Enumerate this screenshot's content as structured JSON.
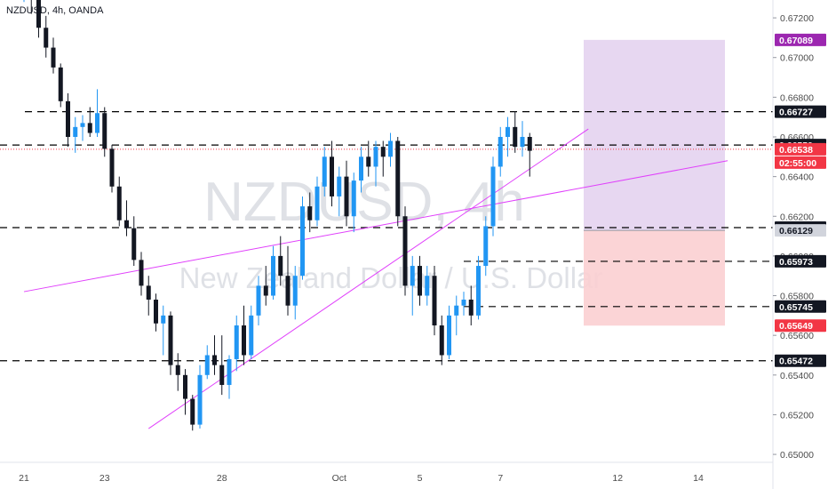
{
  "header": {
    "symbol": "NZDUSD, 4h, OANDA"
  },
  "watermark": {
    "ticker": "NZDUSD, 4h",
    "description": "New Zealand Dollar / U.S. Dollar"
  },
  "colors": {
    "up": "#2196f3",
    "down": "#131722",
    "trend": "#e040fb",
    "dashed": "#000000",
    "profit": "#e4d3f0",
    "loss": "#fbcfd1",
    "axis_text": "#4a4a4a"
  },
  "chart_data": {
    "type": "candlestick",
    "symbol": "NZDUSD",
    "timeframe": "4h",
    "ylim": [
      0.6496,
      0.6729
    ],
    "y_ticks": [
      "0.67200",
      "0.67000",
      "0.66800",
      "0.66600",
      "0.66400",
      "0.66200",
      "0.66000",
      "0.65800",
      "0.65600",
      "0.65400",
      "0.65200",
      "0.65000"
    ],
    "x_labels": [
      {
        "label": "21",
        "bar": 0
      },
      {
        "label": "23",
        "bar": 11
      },
      {
        "label": "28",
        "bar": 27
      },
      {
        "label": "Oct",
        "bar": 43
      },
      {
        "label": "5",
        "bar": 54
      },
      {
        "label": "7",
        "bar": 65
      },
      {
        "label": "12",
        "bar": 81
      },
      {
        "label": "14",
        "bar": 92
      }
    ],
    "candles": [
      [
        0.6735,
        0.675,
        0.6728,
        0.674
      ],
      [
        0.674,
        0.6748,
        0.6722,
        0.673
      ],
      [
        0.673,
        0.6733,
        0.671,
        0.6715
      ],
      [
        0.6715,
        0.6721,
        0.67,
        0.6705
      ],
      [
        0.6705,
        0.671,
        0.6692,
        0.6695
      ],
      [
        0.6695,
        0.6697,
        0.6675,
        0.6678
      ],
      [
        0.6678,
        0.6682,
        0.6655,
        0.666
      ],
      [
        0.666,
        0.667,
        0.6652,
        0.6665
      ],
      [
        0.6665,
        0.6671,
        0.6658,
        0.6667
      ],
      [
        0.6667,
        0.6675,
        0.666,
        0.6662
      ],
      [
        0.6662,
        0.6684,
        0.666,
        0.6672
      ],
      [
        0.6672,
        0.6675,
        0.665,
        0.6654
      ],
      [
        0.6654,
        0.6656,
        0.6632,
        0.6635
      ],
      [
        0.6635,
        0.664,
        0.6615,
        0.6618
      ],
      [
        0.6618,
        0.6628,
        0.661,
        0.6614
      ],
      [
        0.6614,
        0.662,
        0.6595,
        0.6598
      ],
      [
        0.6598,
        0.6602,
        0.658,
        0.6585
      ],
      [
        0.6585,
        0.659,
        0.657,
        0.6578
      ],
      [
        0.6578,
        0.6581,
        0.6562,
        0.6566
      ],
      [
        0.6566,
        0.6575,
        0.655,
        0.657
      ],
      [
        0.657,
        0.6572,
        0.654,
        0.6545
      ],
      [
        0.6545,
        0.6551,
        0.6532,
        0.654
      ],
      [
        0.654,
        0.6543,
        0.652,
        0.6528
      ],
      [
        0.6528,
        0.653,
        0.6512,
        0.6515
      ],
      [
        0.6515,
        0.6545,
        0.6513,
        0.654
      ],
      [
        0.654,
        0.6555,
        0.6538,
        0.655
      ],
      [
        0.655,
        0.656,
        0.654,
        0.6545
      ],
      [
        0.6545,
        0.656,
        0.653,
        0.6535
      ],
      [
        0.6535,
        0.655,
        0.6528,
        0.6548
      ],
      [
        0.6548,
        0.657,
        0.6542,
        0.6565
      ],
      [
        0.6565,
        0.6575,
        0.6545,
        0.655
      ],
      [
        0.655,
        0.6575,
        0.6548,
        0.657
      ],
      [
        0.657,
        0.659,
        0.6565,
        0.6585
      ],
      [
        0.6585,
        0.6595,
        0.6575,
        0.658
      ],
      [
        0.658,
        0.6605,
        0.6578,
        0.66
      ],
      [
        0.66,
        0.661,
        0.6585,
        0.659
      ],
      [
        0.659,
        0.6605,
        0.657,
        0.6575
      ],
      [
        0.6575,
        0.6595,
        0.6568,
        0.659
      ],
      [
        0.659,
        0.663,
        0.6588,
        0.6625
      ],
      [
        0.6625,
        0.6632,
        0.6612,
        0.6618
      ],
      [
        0.6618,
        0.664,
        0.6615,
        0.6635
      ],
      [
        0.6635,
        0.6655,
        0.663,
        0.665
      ],
      [
        0.665,
        0.6658,
        0.6625,
        0.663
      ],
      [
        0.663,
        0.6645,
        0.662,
        0.664
      ],
      [
        0.664,
        0.6648,
        0.6615,
        0.662
      ],
      [
        0.662,
        0.6642,
        0.6612,
        0.6638
      ],
      [
        0.6638,
        0.6655,
        0.6632,
        0.665
      ],
      [
        0.665,
        0.6658,
        0.664,
        0.6645
      ],
      [
        0.6645,
        0.6658,
        0.6635,
        0.6655
      ],
      [
        0.6655,
        0.6658,
        0.664,
        0.665
      ],
      [
        0.665,
        0.6662,
        0.6645,
        0.6658
      ],
      [
        0.6658,
        0.666,
        0.6615,
        0.662
      ],
      [
        0.662,
        0.6625,
        0.658,
        0.6585
      ],
      [
        0.6585,
        0.66,
        0.657,
        0.6595
      ],
      [
        0.6595,
        0.66,
        0.6575,
        0.658
      ],
      [
        0.658,
        0.6595,
        0.6575,
        0.659
      ],
      [
        0.659,
        0.6595,
        0.656,
        0.6565
      ],
      [
        0.6565,
        0.657,
        0.6545,
        0.655
      ],
      [
        0.655,
        0.6575,
        0.6548,
        0.657
      ],
      [
        0.657,
        0.658,
        0.656,
        0.6575
      ],
      [
        0.6575,
        0.6582,
        0.657,
        0.6578
      ],
      [
        0.6578,
        0.6585,
        0.6565,
        0.657
      ],
      [
        0.657,
        0.66,
        0.6568,
        0.6595
      ],
      [
        0.6595,
        0.662,
        0.659,
        0.6615
      ],
      [
        0.6615,
        0.665,
        0.661,
        0.6645
      ],
      [
        0.6645,
        0.6665,
        0.664,
        0.666
      ],
      [
        0.666,
        0.667,
        0.665,
        0.6665
      ],
      [
        0.6665,
        0.6673,
        0.6652,
        0.6655
      ],
      [
        0.6655,
        0.6668,
        0.665,
        0.666
      ],
      [
        0.666,
        0.6662,
        0.664,
        0.6653
      ]
    ],
    "horizontal_levels": [
      {
        "price": 0.66727,
        "label": "0.66727"
      },
      {
        "price": 0.66559,
        "label": "0.66559"
      },
      {
        "price": 0.66143,
        "label": "0.66143"
      },
      {
        "price": 0.65973,
        "label": "0.65973"
      },
      {
        "price": 0.65745,
        "label": "0.65745"
      },
      {
        "price": 0.65472,
        "label": "0.65472"
      }
    ],
    "price_tags": [
      {
        "price": 0.67089,
        "label": "0.67089",
        "color": "#9c27b0"
      },
      {
        "price": 0.66538,
        "label": "0.66538",
        "color": "#f23645"
      },
      {
        "price": 0.66129,
        "label": "0.66129",
        "color": "#d1d4dc"
      },
      {
        "price": 0.65649,
        "label": "0.65649",
        "color": "#f23645"
      }
    ],
    "countdown": "02:55:00",
    "position": {
      "entry": 0.66129,
      "target": 0.67089,
      "stop": 0.65649
    },
    "trendlines": [
      {
        "from": {
          "bar": 0,
          "price": 0.6582
        },
        "to": {
          "bar": 96,
          "price": 0.6648
        }
      },
      {
        "from": {
          "bar": 17,
          "price": 0.6513
        },
        "to": {
          "bar": 77,
          "price": 0.6664
        }
      }
    ]
  }
}
